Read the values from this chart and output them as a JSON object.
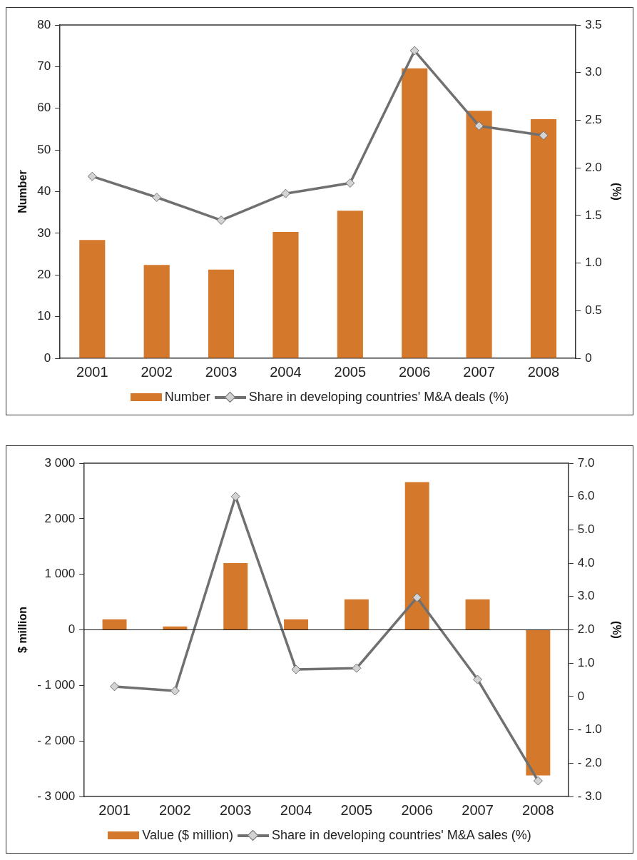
{
  "chart_data": [
    {
      "type": "bar",
      "categories": [
        "2001",
        "2002",
        "2003",
        "2004",
        "2005",
        "2006",
        "2007",
        "2008"
      ],
      "ylabel": "Number",
      "y2label": "(%)",
      "ylim": [
        0,
        80
      ],
      "yticks": [
        0,
        10,
        20,
        30,
        40,
        50,
        60,
        70,
        80
      ],
      "y2lim": [
        0,
        3.5
      ],
      "y2ticks": [
        0,
        {
          "value": 0.5,
          "label": "0.5"
        },
        {
          "value": 1,
          "label": "1.0"
        },
        {
          "value": 1.5,
          "label": "1.5"
        },
        {
          "value": 2,
          "label": "2.0"
        },
        {
          "value": 2.5,
          "label": "2.5"
        },
        {
          "value": 3,
          "label": "3.0"
        },
        {
          "value": 3.5,
          "label": "3.5"
        }
      ],
      "grid": false,
      "legend": "bottom",
      "series": [
        {
          "name": "Number",
          "color": "#d4782c",
          "values": [
            28.4,
            22.4,
            21.3,
            30.3,
            35.4,
            69.6,
            59.4,
            57.4
          ]
        },
        {
          "name": "Share in developing countries' M&A deals (%)",
          "type": "line",
          "axis": "y2",
          "color": "#707070",
          "marker": "diamond",
          "values": [
            1.91,
            1.69,
            1.45,
            1.73,
            1.84,
            3.23,
            2.44,
            2.34
          ]
        }
      ]
    },
    {
      "type": "bar",
      "categories": [
        "2001",
        "2002",
        "2003",
        "2004",
        "2005",
        "2006",
        "2007",
        "2008"
      ],
      "ylabel": "$ million",
      "y2label": "(%)",
      "ylim": [
        -3000,
        3000
      ],
      "yticks": [
        {
          "value": -3000,
          "label": "- 3 000"
        },
        {
          "value": -2000,
          "label": "- 2 000"
        },
        {
          "value": -1000,
          "label": "- 1 000"
        },
        0,
        {
          "value": 1000,
          "label": "1 000"
        },
        {
          "value": 2000,
          "label": "2 000"
        },
        {
          "value": 3000,
          "label": "3 000"
        }
      ],
      "y2lim": [
        -3,
        7
      ],
      "y2ticks": [
        {
          "value": -3,
          "label": "- 3.0"
        },
        {
          "value": -2,
          "label": "- 2.0"
        },
        {
          "value": -1,
          "label": "- 1.0"
        },
        0,
        {
          "value": 1,
          "label": "1.0"
        },
        {
          "value": 2,
          "label": "2.0"
        },
        {
          "value": 3,
          "label": "3.0"
        },
        {
          "value": 4,
          "label": "4.0"
        },
        {
          "value": 5,
          "label": "5.0"
        },
        {
          "value": 6,
          "label": "6.0"
        },
        {
          "value": 7,
          "label": "7.0"
        }
      ],
      "grid": false,
      "legend": "bottom",
      "ref_lines": [
        {
          "axis": "y",
          "value": 0
        }
      ],
      "series": [
        {
          "name": "Value ($ million)",
          "color": "#d4782c",
          "values": [
            190,
            60,
            1200,
            190,
            550,
            2660,
            550,
            -2620
          ]
        },
        {
          "name": "Share in developing countries' M&A sales (%)",
          "type": "line",
          "axis": "y2",
          "color": "#707070",
          "marker": "diamond",
          "values": [
            0.3,
            0.17,
            6.0,
            0.81,
            0.85,
            2.97,
            0.51,
            -2.53
          ]
        }
      ]
    }
  ]
}
